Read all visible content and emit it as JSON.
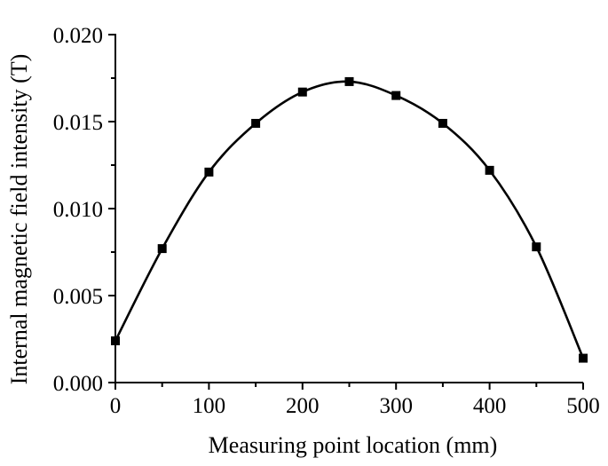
{
  "chart_data": {
    "type": "line",
    "title": "",
    "xlabel": "Measuring point location (mm)",
    "ylabel": "Internal magnetic field intensity (T)",
    "xlim": [
      0,
      500
    ],
    "ylim": [
      0.0,
      0.02
    ],
    "x_ticks": [
      0,
      100,
      200,
      300,
      400,
      500
    ],
    "x_tick_labels": [
      "0",
      "100",
      "200",
      "300",
      "400",
      "500"
    ],
    "y_ticks": [
      0.0,
      0.005,
      0.01,
      0.015,
      0.02
    ],
    "y_tick_labels": [
      "0.000",
      "0.005",
      "0.010",
      "0.015",
      "0.020"
    ],
    "grid": false,
    "legend": "none",
    "marker": "square",
    "line_style": "smooth",
    "color": "#000000",
    "series": [
      {
        "x": [
          0,
          50,
          100,
          150,
          200,
          250,
          300,
          350,
          400,
          450,
          500
        ],
        "values": [
          0.0024,
          0.0077,
          0.0121,
          0.0149,
          0.0167,
          0.0173,
          0.0165,
          0.0149,
          0.0122,
          0.0078,
          0.0014
        ]
      }
    ]
  }
}
